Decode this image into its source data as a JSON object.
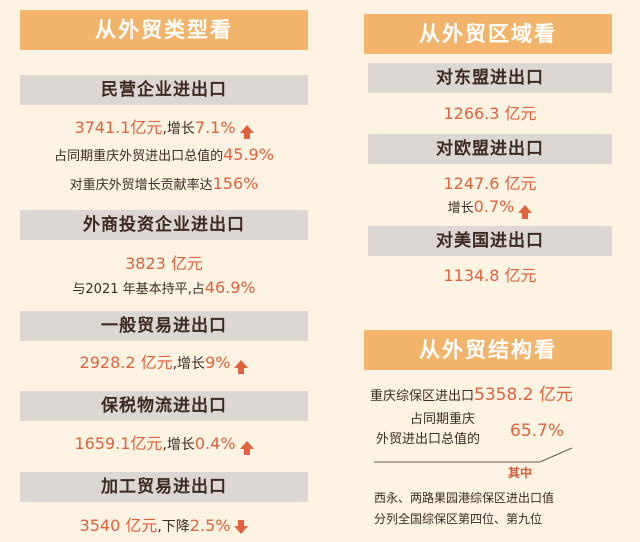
{
  "left": {
    "header": "从外贸类型看",
    "private": {
      "title": "民营企业进出口",
      "value": "3741.1亿元",
      "growth_prefix": ",增长",
      "growth": "7.1%",
      "share_prefix": "占同期重庆外贸进出口总值的",
      "share": "45.9%",
      "contrib_prefix": "对重庆外贸增长贡献率达",
      "contrib": "156%"
    },
    "foreign": {
      "title": "外商投资企业进出口",
      "value": "3823 亿元",
      "note_prefix": "与2021 年基本持平,占",
      "note": "46.9%"
    },
    "general": {
      "title": "一般贸易进出口",
      "value": "2928.2 亿元",
      "growth_prefix": ",增长",
      "growth": "9%"
    },
    "bonded": {
      "title": "保税物流进出口",
      "value": "1659.1亿元",
      "growth_prefix": ",增长",
      "growth": "0.4%"
    },
    "processing": {
      "title": "加工贸易进出口",
      "value": "3540 亿元",
      "decline_prefix": ",下降",
      "decline": "2.5%"
    }
  },
  "right": {
    "header": "从外贸区域看",
    "asean": {
      "title": "对东盟进出口",
      "value": "1266.3 亿元"
    },
    "eu": {
      "title": "对欧盟进出口",
      "value": "1247.6 亿元",
      "growth_prefix": "增长",
      "growth": "0.7%"
    },
    "us": {
      "title": "对美国进出口",
      "value": "1134.8 亿元"
    },
    "header2": "从外贸结构看",
    "structure": {
      "zone_label": "重庆综保区进出口",
      "zone_value": "5358.2 亿元",
      "share_line1": "占同期重庆",
      "share_line2": "外贸进出口总值的",
      "share_value": "65.7%",
      "tag": "其中",
      "note_line1": "西永、两路果园港综保区进出口值",
      "note_line2": "分列全国综保区第四位、第九位"
    }
  },
  "colors": {
    "accent": "#e0623f",
    "header_bg": "#f2b46a",
    "bar_bg": "#dcd7d2",
    "page_bg": "#fdf3e3"
  }
}
